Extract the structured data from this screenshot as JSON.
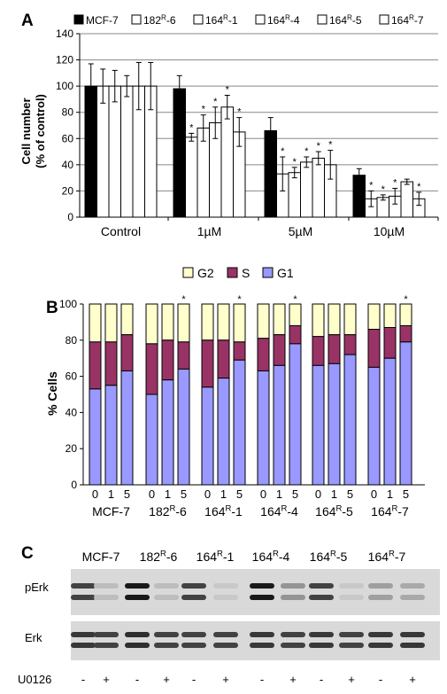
{
  "panels": {
    "a": {
      "label": "A"
    },
    "b": {
      "label": "B"
    },
    "c": {
      "label": "C"
    }
  },
  "chart_data": [
    {
      "type": "bar",
      "panel": "A",
      "ylabel_line1": "Cell number",
      "ylabel_line2": "(% of  control)",
      "ylim": [
        0,
        140
      ],
      "yticks": [
        "0",
        "20",
        "40",
        "60",
        "80",
        "100",
        "120",
        "140"
      ],
      "grid": true,
      "legend_position": "top",
      "categories": [
        "Control",
        "1µM",
        "5µM",
        "10µM"
      ],
      "series": [
        {
          "name": "MCF-7",
          "name_base": "MCF-7",
          "name_sup": "",
          "name_suffix": "",
          "fill": "#000000",
          "values": [
            100,
            98,
            66,
            32
          ],
          "errors": [
            17,
            10,
            10,
            5
          ],
          "significant": [
            false,
            false,
            false,
            false
          ]
        },
        {
          "name": "182R-6",
          "name_base": "182",
          "name_sup": "R",
          "name_suffix": "-6",
          "fill": "#ffffff",
          "values": [
            100,
            61,
            33,
            14
          ],
          "errors": [
            13,
            3,
            13,
            6
          ],
          "significant": [
            false,
            true,
            true,
            true
          ]
        },
        {
          "name": "164R-1",
          "name_base": "164",
          "name_sup": "R",
          "name_suffix": "-1",
          "fill": "#ffffff",
          "values": [
            100,
            68,
            34,
            15
          ],
          "errors": [
            12,
            10,
            4,
            2
          ],
          "significant": [
            false,
            true,
            true,
            true
          ]
        },
        {
          "name": "164R-4",
          "name_base": "164",
          "name_sup": "R",
          "name_suffix": "-4",
          "fill": "#ffffff",
          "values": [
            100,
            72,
            42,
            16
          ],
          "errors": [
            8,
            12,
            4,
            6
          ],
          "significant": [
            false,
            true,
            true,
            true
          ]
        },
        {
          "name": "164R-5",
          "name_base": "164",
          "name_sup": "R",
          "name_suffix": "-5",
          "fill": "#ffffff",
          "values": [
            100,
            84,
            45,
            27
          ],
          "errors": [
            18,
            9,
            5,
            2
          ],
          "significant": [
            false,
            true,
            true,
            false
          ]
        },
        {
          "name": "164R-7",
          "name_base": "164",
          "name_sup": "R",
          "name_suffix": "-7",
          "fill": "#ffffff",
          "values": [
            100,
            65,
            40,
            14
          ],
          "errors": [
            18,
            11,
            11,
            5
          ],
          "significant": [
            false,
            true,
            true,
            true
          ]
        }
      ],
      "significance_marker": "*"
    },
    {
      "type": "bar",
      "stacked": true,
      "panel": "B",
      "ylabel": "% Cells",
      "ylim": [
        0,
        100
      ],
      "yticks": [
        "0",
        "20",
        "40",
        "60",
        "80",
        "100"
      ],
      "legend_position": "top",
      "legend": [
        {
          "name": "G2",
          "fill": "#ffffcc"
        },
        {
          "name": "S",
          "fill": "#993366"
        },
        {
          "name": "G1",
          "fill": "#9999ff"
        }
      ],
      "doses": [
        "0",
        "1",
        "5"
      ],
      "groups": [
        {
          "name_base": "MCF-7",
          "name_sup": "",
          "name_suffix": "",
          "g1": [
            53,
            55,
            63
          ],
          "s": [
            26,
            24,
            20
          ],
          "marked": [
            false,
            false,
            false
          ]
        },
        {
          "name_base": "182",
          "name_sup": "R",
          "name_suffix": "-6",
          "g1": [
            50,
            58,
            64
          ],
          "s": [
            28,
            22,
            15
          ],
          "marked": [
            false,
            false,
            true
          ]
        },
        {
          "name_base": "164",
          "name_sup": "R",
          "name_suffix": "-1",
          "g1": [
            54,
            59,
            69
          ],
          "s": [
            26,
            21,
            10
          ],
          "marked": [
            false,
            false,
            true
          ]
        },
        {
          "name_base": "164",
          "name_sup": "R",
          "name_suffix": "-4",
          "g1": [
            63,
            66,
            78
          ],
          "s": [
            18,
            17,
            10
          ],
          "marked": [
            false,
            false,
            true
          ]
        },
        {
          "name_base": "164",
          "name_sup": "R",
          "name_suffix": "-5",
          "g1": [
            66,
            67,
            72
          ],
          "s": [
            16,
            16,
            11
          ],
          "marked": [
            false,
            false,
            false
          ]
        },
        {
          "name_base": "164",
          "name_sup": "R",
          "name_suffix": "-7",
          "g1": [
            65,
            70,
            79
          ],
          "s": [
            21,
            17,
            9
          ],
          "marked": [
            false,
            false,
            true
          ]
        }
      ],
      "significance_marker": "*"
    }
  ],
  "blot": {
    "cell_lines": [
      {
        "base": "MCF-7",
        "sup": "",
        "suffix": ""
      },
      {
        "base": "182",
        "sup": "R",
        "suffix": "-6"
      },
      {
        "base": "164",
        "sup": "R",
        "suffix": "-1"
      },
      {
        "base": "164",
        "sup": "R",
        "suffix": "-4"
      },
      {
        "base": "164",
        "sup": "R",
        "suffix": "-5"
      },
      {
        "base": "164",
        "sup": "R",
        "suffix": "-7"
      }
    ],
    "rows": [
      {
        "label": "pErk",
        "intensities": [
          0.75,
          0.15,
          0.95,
          0.15,
          0.75,
          0.1,
          0.95,
          0.35,
          0.75,
          0.1,
          0.3,
          0.25
        ]
      },
      {
        "label": "Erk",
        "intensities": [
          0.8,
          0.75,
          0.85,
          0.75,
          0.75,
          0.75,
          0.8,
          0.75,
          0.8,
          0.75,
          0.8,
          0.8
        ]
      }
    ],
    "treatment_label": "U0126",
    "treatment": [
      "-",
      "+",
      "-",
      "+",
      "-",
      "+",
      "-",
      "+",
      "-",
      "+",
      "-",
      "+"
    ]
  }
}
